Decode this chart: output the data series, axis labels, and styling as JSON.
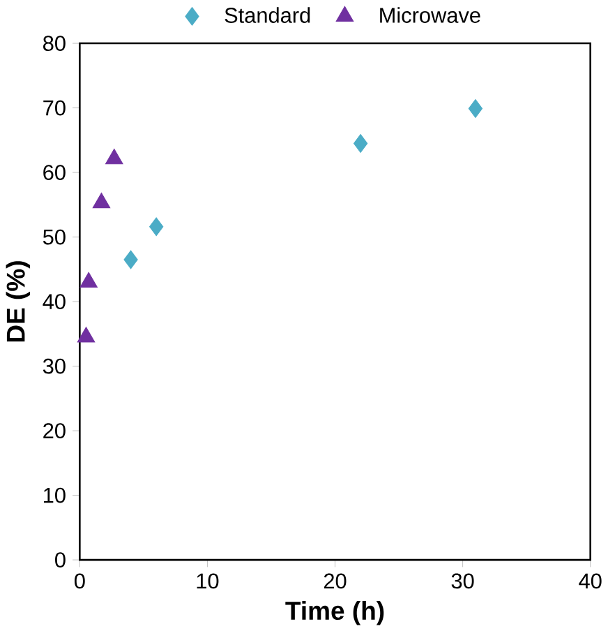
{
  "chart_data": {
    "type": "scatter",
    "xlabel": "Time (h)",
    "ylabel": "DE (%)",
    "xlim": [
      0,
      40
    ],
    "xticks": [
      0,
      10,
      20,
      30,
      40
    ],
    "ylim": [
      0,
      80
    ],
    "yticks": [
      0,
      10,
      20,
      30,
      40,
      50,
      60,
      70,
      80
    ],
    "legend": "top",
    "grid": false,
    "series": [
      {
        "name": "Standard",
        "color": "#4bacc6",
        "marker": "diamond",
        "x": [
          4,
          6,
          22,
          31
        ],
        "values": [
          46.5,
          51.6,
          64.5,
          69.9
        ]
      },
      {
        "name": "Microwave",
        "color": "#7030a0",
        "marker": "triangle",
        "x": [
          0.5,
          0.7,
          1.7,
          2.7
        ],
        "values": [
          34.5,
          43,
          55.3,
          62.1
        ]
      }
    ]
  }
}
